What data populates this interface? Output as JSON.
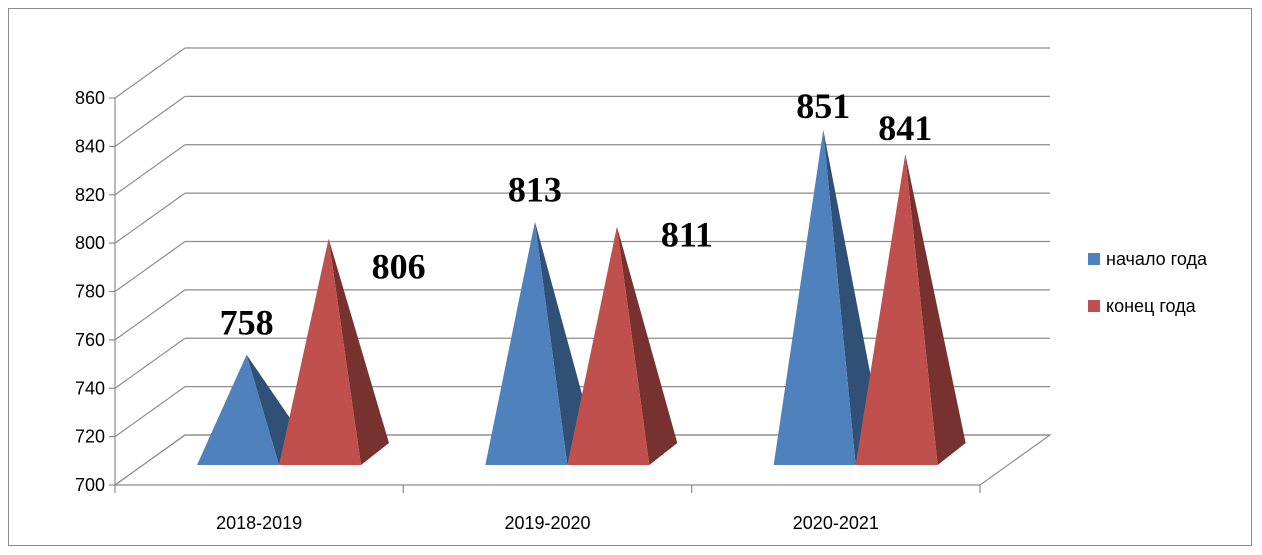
{
  "chart_data": {
    "type": "bar",
    "bar_shape": "pyramid-3d",
    "title": "",
    "xlabel": "",
    "ylabel": "",
    "categories": [
      "2018-2019",
      "2019-2020",
      "2020-2021"
    ],
    "series": [
      {
        "name": "начало года",
        "color": "#4f81bd",
        "values": [
          758,
          813,
          851
        ]
      },
      {
        "name": "конец года",
        "color": "#c0504d",
        "values": [
          806,
          811,
          841
        ]
      }
    ],
    "ylim": [
      700,
      860
    ],
    "yticks": [
      700,
      720,
      740,
      760,
      780,
      800,
      820,
      840,
      860
    ],
    "grid": true,
    "legend_position": "right"
  }
}
